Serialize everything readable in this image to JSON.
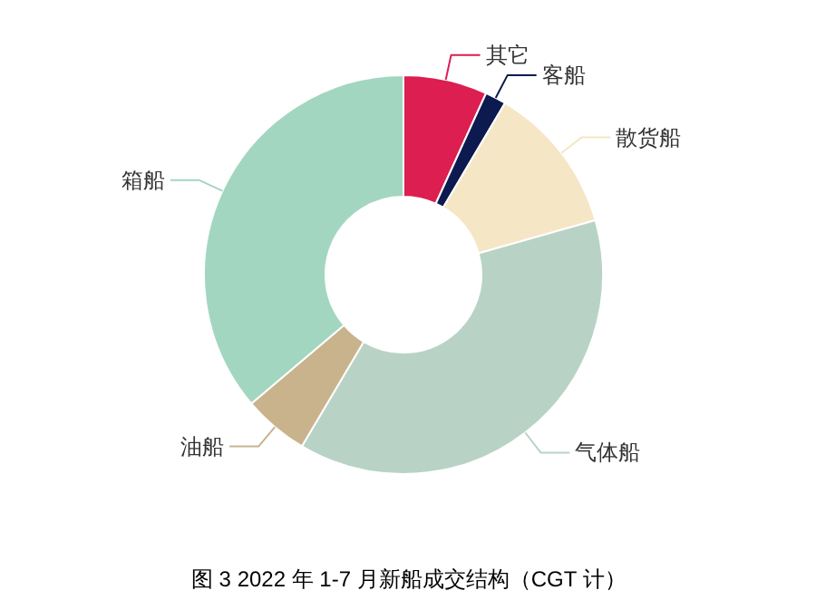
{
  "chart_data": {
    "type": "donut",
    "title": "图 3 2022 年 1-7 月新船成交结构（CGT 计）",
    "categories": [
      "其它",
      "客船",
      "散货船",
      "气体船",
      "油船",
      "箱船"
    ],
    "values": [
      6.8,
      1.7,
      12.1,
      37.9,
      5.3,
      36.2
    ],
    "colors": [
      "#dc1e50",
      "#0d1a4f",
      "#f5e6c6",
      "#b8d3c6",
      "#c8b38c",
      "#a3d6c1"
    ],
    "legend": false
  }
}
